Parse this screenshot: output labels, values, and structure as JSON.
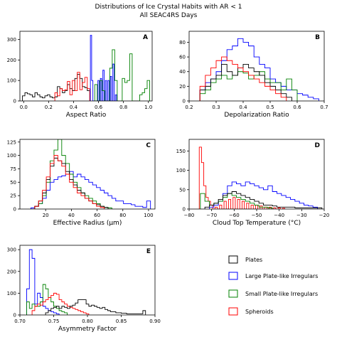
{
  "figure": {
    "title_line1": "Distributions of Ice Crystal Habits with AR < 1",
    "title_line2": "All SEAC4RS Days"
  },
  "legend": [
    {
      "name": "Plates",
      "color": "#000000"
    },
    {
      "name": "Large Plate-like Irregulars",
      "color": "#0000ff"
    },
    {
      "name": "Small Plate-like Irregulars",
      "color": "#008000"
    },
    {
      "name": "Spheroids",
      "color": "#ff0000"
    }
  ],
  "chart_data": [
    {
      "type": "histogram",
      "panel": "A",
      "xlabel": "Aspect Ratio",
      "ylabel": "",
      "xlim": [
        -0.03,
        1.03
      ],
      "ylim": [
        0,
        340
      ],
      "xticks": [
        0.0,
        0.2,
        0.4,
        0.6,
        0.8,
        1.0
      ],
      "xtick_labels": [
        "0.0",
        "0.2",
        "0.4",
        "0.6",
        "0.8",
        "1.0"
      ],
      "yticks": [
        0,
        100,
        200,
        300
      ],
      "ytick_labels": [
        "0",
        "100",
        "200",
        "300"
      ],
      "series": [
        {
          "color": "#000000",
          "x": [
            0.0,
            0.02,
            0.04,
            0.06,
            0.08,
            0.1,
            0.12,
            0.14,
            0.16,
            0.18,
            0.2,
            0.22,
            0.24,
            0.26,
            0.28,
            0.3,
            0.32,
            0.34,
            0.36,
            0.38,
            0.4,
            0.42,
            0.44,
            0.46,
            0.48,
            0.5,
            0.52
          ],
          "values": [
            25,
            40,
            35,
            30,
            20,
            40,
            30,
            20,
            15,
            25,
            30,
            20,
            15,
            20,
            70,
            60,
            40,
            50,
            80,
            60,
            50,
            110,
            130,
            110,
            70,
            65,
            50
          ]
        },
        {
          "color": "#ff0000",
          "x": [
            0.26,
            0.28,
            0.3,
            0.32,
            0.34,
            0.36,
            0.38,
            0.4,
            0.42,
            0.44,
            0.46,
            0.48,
            0.5,
            0.52
          ],
          "values": [
            40,
            25,
            60,
            50,
            55,
            95,
            30,
            100,
            50,
            140,
            55,
            90,
            115,
            60
          ]
        },
        {
          "color": "#0000ff",
          "x": [
            0.54,
            0.55,
            0.6,
            0.62,
            0.64,
            0.66,
            0.68,
            0.7,
            0.72,
            0.74
          ],
          "values": [
            320,
            100,
            100,
            110,
            150,
            100,
            100,
            120,
            180,
            30
          ]
        },
        {
          "color": "#008000",
          "x": [
            0.58,
            0.62,
            0.64,
            0.7,
            0.72,
            0.74,
            0.8,
            0.82,
            0.84,
            0.86,
            0.94,
            0.96,
            0.98,
            1.0
          ],
          "values": [
            80,
            100,
            50,
            160,
            250,
            100,
            110,
            90,
            100,
            230,
            30,
            40,
            60,
            100
          ]
        }
      ]
    },
    {
      "type": "histogram",
      "panel": "B",
      "xlabel": "Depolarization Ratio",
      "ylabel": "",
      "xlim": [
        0.2,
        0.7
      ],
      "ylim": [
        0,
        95
      ],
      "xticks": [
        0.2,
        0.3,
        0.4,
        0.5,
        0.6,
        0.7
      ],
      "xtick_labels": [
        "0.2",
        "0.3",
        "0.4",
        "0.5",
        "0.6",
        "0.7"
      ],
      "yticks": [
        0,
        20,
        40,
        60,
        80
      ],
      "ytick_labels": [
        "0",
        "20",
        "40",
        "60",
        "80"
      ],
      "series": [
        {
          "color": "#0000ff",
          "x": [
            0.25,
            0.27,
            0.29,
            0.31,
            0.33,
            0.35,
            0.37,
            0.39,
            0.41,
            0.43,
            0.45,
            0.47,
            0.49,
            0.51,
            0.53,
            0.55,
            0.57,
            0.59,
            0.61,
            0.63,
            0.65,
            0.67
          ],
          "values": [
            15,
            25,
            30,
            40,
            55,
            70,
            75,
            85,
            80,
            75,
            60,
            50,
            45,
            30,
            25,
            20,
            15,
            15,
            10,
            8,
            5,
            3
          ]
        },
        {
          "color": "#008000",
          "x": [
            0.25,
            0.27,
            0.29,
            0.31,
            0.33,
            0.35,
            0.37,
            0.39,
            0.41,
            0.43,
            0.45,
            0.47,
            0.49,
            0.51,
            0.53,
            0.55,
            0.57,
            0.59
          ],
          "values": [
            10,
            15,
            25,
            30,
            35,
            30,
            35,
            40,
            38,
            30,
            35,
            40,
            30,
            25,
            25,
            15,
            30,
            15
          ]
        },
        {
          "color": "#000000",
          "x": [
            0.25,
            0.27,
            0.29,
            0.31,
            0.33,
            0.35,
            0.37,
            0.39,
            0.41,
            0.43,
            0.45,
            0.47,
            0.49,
            0.51,
            0.53,
            0.55,
            0.57
          ],
          "values": [
            15,
            20,
            30,
            35,
            50,
            40,
            35,
            45,
            50,
            45,
            40,
            35,
            25,
            20,
            15,
            10,
            5
          ]
        },
        {
          "color": "#ff0000",
          "x": [
            0.25,
            0.27,
            0.29,
            0.31,
            0.33,
            0.35,
            0.37,
            0.39,
            0.41,
            0.43,
            0.45,
            0.47,
            0.49,
            0.51,
            0.53,
            0.55
          ],
          "values": [
            20,
            35,
            45,
            55,
            60,
            55,
            50,
            45,
            40,
            35,
            30,
            25,
            20,
            15,
            10,
            5
          ]
        }
      ]
    },
    {
      "type": "histogram",
      "panel": "C",
      "xlabel": "Effective Radius (μm)",
      "ylabel": "",
      "xlim": [
        0,
        105
      ],
      "ylim": [
        0,
        130
      ],
      "xticks": [
        20,
        40,
        60,
        80,
        100
      ],
      "xtick_labels": [
        "20",
        "40",
        "60",
        "80",
        "100"
      ],
      "yticks": [
        0,
        25,
        50,
        75,
        100,
        125
      ],
      "ytick_labels": [
        "0",
        "25",
        "50",
        "75",
        "100",
        "125"
      ],
      "series": [
        {
          "color": "#0000ff",
          "x": [
            10,
            13,
            16,
            19,
            22,
            25,
            28,
            31,
            34,
            37,
            40,
            43,
            46,
            49,
            52,
            55,
            58,
            61,
            64,
            67,
            70,
            73,
            76,
            79,
            82,
            85,
            88,
            91,
            94,
            97,
            100
          ],
          "values": [
            2,
            5,
            10,
            20,
            35,
            50,
            55,
            60,
            62,
            65,
            70,
            60,
            65,
            60,
            55,
            50,
            45,
            40,
            35,
            30,
            25,
            20,
            15,
            15,
            10,
            10,
            8,
            5,
            5,
            3,
            15
          ]
        },
        {
          "color": "#008000",
          "x": [
            13,
            16,
            19,
            22,
            25,
            28,
            31,
            34,
            37,
            40,
            43,
            46,
            49,
            52,
            55,
            58,
            61,
            64,
            67,
            70
          ],
          "values": [
            5,
            10,
            25,
            50,
            90,
            110,
            130,
            100,
            85,
            65,
            50,
            40,
            30,
            25,
            20,
            15,
            10,
            5,
            3,
            2
          ]
        },
        {
          "color": "#000000",
          "x": [
            13,
            16,
            19,
            22,
            25,
            28,
            31,
            34,
            37,
            40,
            43,
            46,
            49,
            52,
            55,
            58,
            61,
            64,
            67
          ],
          "values": [
            5,
            15,
            30,
            55,
            80,
            95,
            90,
            85,
            70,
            55,
            45,
            35,
            30,
            20,
            15,
            10,
            8,
            5,
            3
          ]
        },
        {
          "color": "#ff0000",
          "x": [
            13,
            16,
            19,
            22,
            25,
            28,
            31,
            34,
            37,
            40,
            43,
            46,
            49,
            52,
            55,
            58,
            61,
            64
          ],
          "values": [
            5,
            15,
            35,
            60,
            85,
            100,
            90,
            80,
            65,
            50,
            40,
            30,
            25,
            20,
            15,
            10,
            5,
            3
          ]
        }
      ]
    },
    {
      "type": "histogram",
      "panel": "D",
      "xlabel": "Cloud Top Temperature (°C)",
      "ylabel": "",
      "xlim": [
        -80,
        -20
      ],
      "ylim": [
        0,
        180
      ],
      "xticks": [
        -80,
        -70,
        -60,
        -50,
        -40,
        -30,
        -20
      ],
      "xtick_labels": [
        "−80",
        "−70",
        "−60",
        "−50",
        "−40",
        "−30",
        "−20"
      ],
      "yticks": [
        0,
        50,
        100,
        150
      ],
      "ytick_labels": [
        "0",
        "50",
        "100",
        "150"
      ],
      "series": [
        {
          "color": "#ff0000",
          "x": [
            -75,
            -74,
            -73,
            -72,
            -71,
            -70,
            -68,
            -66,
            -64,
            -62,
            -60,
            -58,
            -56,
            -54,
            -52,
            -50,
            -48,
            -46,
            -44,
            -42,
            -40,
            -38
          ],
          "values": [
            160,
            120,
            60,
            30,
            20,
            10,
            5,
            10,
            20,
            25,
            30,
            25,
            20,
            15,
            10,
            10,
            8,
            5,
            5,
            3,
            3,
            2
          ]
        },
        {
          "color": "#0000ff",
          "x": [
            -70,
            -68,
            -66,
            -64,
            -62,
            -60,
            -58,
            -56,
            -54,
            -52,
            -50,
            -48,
            -46,
            -44,
            -42,
            -40,
            -38,
            -36,
            -34,
            -32,
            -30,
            -28,
            -26,
            -24
          ],
          "values": [
            5,
            10,
            20,
            40,
            60,
            70,
            65,
            60,
            70,
            65,
            60,
            55,
            50,
            60,
            45,
            40,
            35,
            30,
            25,
            20,
            15,
            10,
            8,
            5
          ]
        },
        {
          "color": "#008000",
          "x": [
            -74,
            -72,
            -70,
            -68,
            -66,
            -64,
            -62,
            -60,
            -58,
            -56,
            -54,
            -52,
            -50,
            -48,
            -46,
            -44
          ],
          "values": [
            40,
            20,
            10,
            15,
            20,
            30,
            40,
            35,
            30,
            25,
            20,
            15,
            10,
            5,
            5,
            3
          ]
        },
        {
          "color": "#000000",
          "x": [
            -72,
            -70,
            -68,
            -66,
            -64,
            -62,
            -60,
            -58,
            -56,
            -54,
            -52,
            -50,
            -48,
            -46,
            -44,
            -42,
            -40,
            -38,
            -36,
            -34,
            -32,
            -30,
            -28,
            -26,
            -24,
            -22
          ],
          "values": [
            5,
            10,
            15,
            25,
            35,
            40,
            45,
            40,
            35,
            30,
            25,
            20,
            15,
            10,
            10,
            8,
            5,
            5,
            5,
            5,
            3,
            3,
            3,
            3,
            3,
            3
          ]
        }
      ]
    },
    {
      "type": "histogram",
      "panel": "E",
      "xlabel": "Asymmetry Factor",
      "ylabel": "",
      "xlim": [
        0.7,
        0.9
      ],
      "ylim": [
        0,
        320
      ],
      "xticks": [
        0.7,
        0.75,
        0.8,
        0.85,
        0.9
      ],
      "xtick_labels": [
        "0.70",
        "0.75",
        "0.80",
        "0.85",
        "0.90"
      ],
      "yticks": [
        0,
        100,
        200,
        300
      ],
      "ytick_labels": [
        "0",
        "100",
        "200",
        "300"
      ],
      "series": [
        {
          "color": "#0000ff",
          "x": [
            0.712,
            0.716,
            0.72,
            0.724,
            0.728,
            0.732,
            0.736,
            0.74,
            0.744,
            0.748,
            0.752,
            0.756
          ],
          "values": [
            120,
            300,
            260,
            50,
            100,
            80,
            40,
            30,
            20,
            15,
            10,
            5
          ]
        },
        {
          "color": "#008000",
          "x": [
            0.712,
            0.716,
            0.72,
            0.724,
            0.728,
            0.732,
            0.736,
            0.74,
            0.744,
            0.748,
            0.752,
            0.756,
            0.76,
            0.764,
            0.768
          ],
          "values": [
            60,
            30,
            50,
            40,
            40,
            60,
            140,
            120,
            80,
            60,
            40,
            30,
            20,
            15,
            10
          ]
        },
        {
          "color": "#ff0000",
          "x": [
            0.72,
            0.724,
            0.728,
            0.732,
            0.736,
            0.74,
            0.744,
            0.748,
            0.752,
            0.756,
            0.76,
            0.764,
            0.768,
            0.772,
            0.776,
            0.78,
            0.784,
            0.788,
            0.792,
            0.796,
            0.8
          ],
          "values": [
            20,
            40,
            50,
            45,
            60,
            70,
            80,
            90,
            100,
            95,
            70,
            60,
            50,
            40,
            35,
            30,
            25,
            20,
            15,
            10,
            5
          ]
        },
        {
          "color": "#000000",
          "x": [
            0.74,
            0.744,
            0.748,
            0.752,
            0.756,
            0.76,
            0.764,
            0.768,
            0.772,
            0.776,
            0.78,
            0.784,
            0.788,
            0.792,
            0.796,
            0.8,
            0.804,
            0.808,
            0.812,
            0.816,
            0.82,
            0.824,
            0.828,
            0.832,
            0.836,
            0.84,
            0.844,
            0.848,
            0.852,
            0.856,
            0.86,
            0.864,
            0.868,
            0.872,
            0.876,
            0.88,
            0.884
          ],
          "values": [
            10,
            20,
            30,
            35,
            40,
            30,
            40,
            35,
            30,
            40,
            45,
            55,
            70,
            70,
            70,
            50,
            40,
            45,
            40,
            35,
            30,
            35,
            25,
            20,
            15,
            15,
            10,
            10,
            8,
            8,
            5,
            5,
            5,
            5,
            5,
            5,
            20
          ]
        }
      ]
    }
  ]
}
